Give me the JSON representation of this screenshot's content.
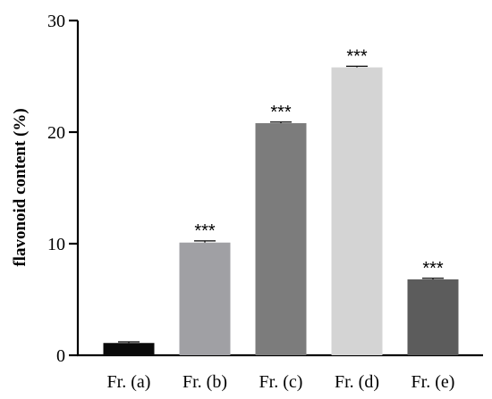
{
  "chart_data": {
    "type": "bar",
    "title": "",
    "xlabel": "",
    "ylabel": "flavonoid content (%)",
    "ylim": [
      0,
      30
    ],
    "yticks": [
      0,
      10,
      20,
      30
    ],
    "grid": false,
    "categories": [
      "Fr. (a)",
      "Fr. (b)",
      "Fr. (c)",
      "Fr. (d)",
      "Fr. (e)"
    ],
    "values": [
      1.1,
      10.1,
      20.8,
      25.8,
      6.8
    ],
    "errors": [
      0.1,
      0.15,
      0.1,
      0.1,
      0.1
    ],
    "significance": [
      "",
      "***",
      "***",
      "***",
      "***"
    ],
    "colors": [
      "#0a0a0a",
      "#a0a0a4",
      "#7c7c7c",
      "#d4d4d4",
      "#5c5c5c"
    ]
  }
}
